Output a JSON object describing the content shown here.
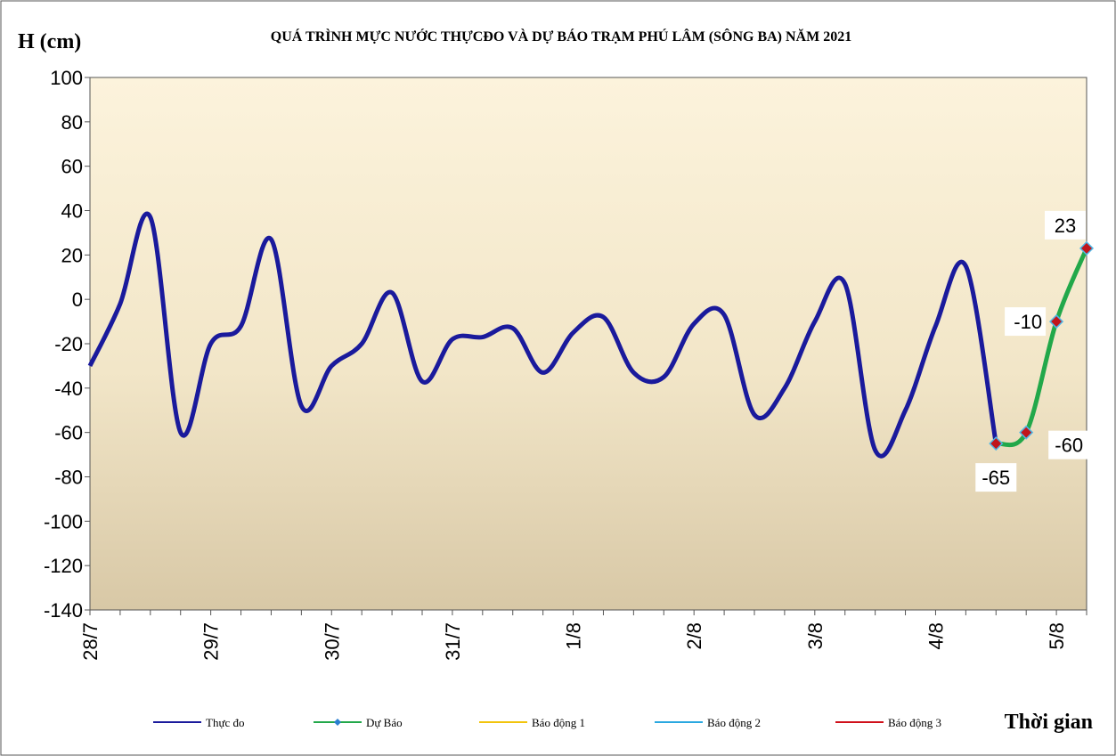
{
  "chart_data": {
    "type": "line",
    "title": "QUÁ TRÌNH MỰC NƯỚC THỰCĐO VÀ DỰ BÁO TRẠM PHÚ LÂM (SÔNG BA) NĂM 2021",
    "y_label": "H (cm)",
    "x_label": "Thời gian",
    "categories": [
      "28/7",
      null,
      null,
      null,
      "29/7",
      null,
      null,
      null,
      "30/7",
      null,
      null,
      null,
      "31/7",
      null,
      null,
      null,
      "1/8",
      null,
      null,
      null,
      "2/8",
      null,
      null,
      null,
      "3/8",
      null,
      null,
      null,
      "4/8",
      null,
      null,
      null,
      "5/8",
      null
    ],
    "series": [
      {
        "name": "Thực đo",
        "color": "#1a1a9c",
        "values": [
          -30,
          -2,
          37,
          -60,
          -20,
          -12,
          27,
          -48,
          -30,
          -20,
          3,
          -37,
          -18,
          -17,
          -13,
          -33,
          -15,
          -8,
          -33,
          -35,
          -11,
          -7,
          -52,
          -40,
          -10,
          7,
          -68,
          -50,
          -12,
          15,
          -65,
          null,
          null,
          null
        ]
      },
      {
        "name": "Dự Báo",
        "color": "#22a84a",
        "marker_color": "#c0161c",
        "values": [
          null,
          null,
          null,
          null,
          null,
          null,
          null,
          null,
          null,
          null,
          null,
          null,
          null,
          null,
          null,
          null,
          null,
          null,
          null,
          null,
          null,
          null,
          null,
          null,
          null,
          null,
          null,
          null,
          null,
          null,
          -65,
          -60,
          -10,
          23
        ]
      },
      {
        "name": "Báo động 1",
        "color": "#f2c40c",
        "values": [
          null,
          null,
          null,
          null,
          null,
          null,
          null,
          null,
          null,
          null,
          null,
          null,
          null,
          null,
          null,
          null,
          null,
          null,
          null,
          null,
          null,
          null,
          null,
          null,
          null,
          null,
          null,
          null,
          null,
          null,
          null,
          null,
          null,
          null
        ]
      },
      {
        "name": "Báo động 2",
        "color": "#2aa8e0",
        "values": [
          null,
          null,
          null,
          null,
          null,
          null,
          null,
          null,
          null,
          null,
          null,
          null,
          null,
          null,
          null,
          null,
          null,
          null,
          null,
          null,
          null,
          null,
          null,
          null,
          null,
          null,
          null,
          null,
          null,
          null,
          null,
          null,
          null,
          null
        ]
      },
      {
        "name": "Báo động 3",
        "color": "#d0101a",
        "values": [
          null,
          null,
          null,
          null,
          null,
          null,
          null,
          null,
          null,
          null,
          null,
          null,
          null,
          null,
          null,
          null,
          null,
          null,
          null,
          null,
          null,
          null,
          null,
          null,
          null,
          null,
          null,
          null,
          null,
          null,
          null,
          null,
          null,
          null
        ]
      }
    ],
    "ylim": [
      -140,
      100
    ],
    "yticks": [
      -140,
      -120,
      -100,
      -80,
      -60,
      -40,
      -20,
      0,
      20,
      40,
      60,
      80,
      100
    ],
    "smooth": true
  }
}
